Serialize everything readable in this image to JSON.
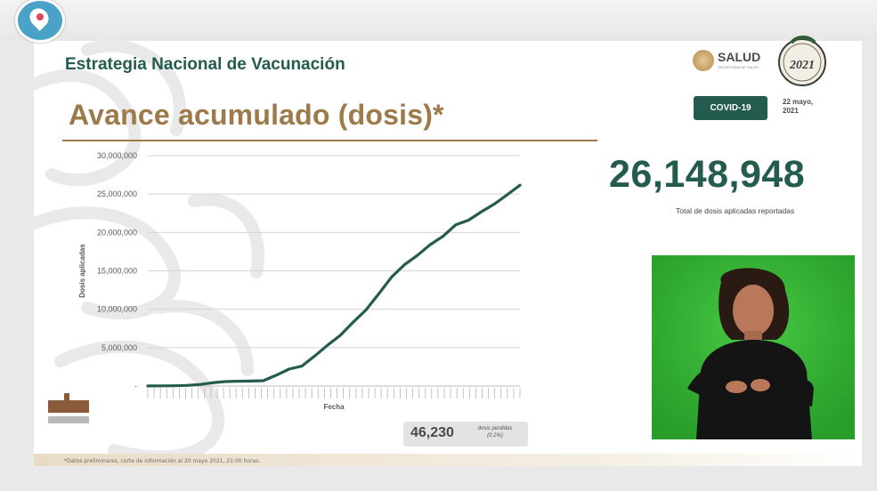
{
  "header": {
    "title": "Estrategia Nacional de Vacunación",
    "subtitle": "Avance acumulado (dosis)*"
  },
  "logos": {
    "salud": "SALUD",
    "salud_sub": "SECRETARÍA DE SALUD",
    "mexico_year": "2021"
  },
  "badge": {
    "label": "COVID-19"
  },
  "date": {
    "line1": "22 mayo,",
    "line2": "2021"
  },
  "kpi": {
    "value": "26,148,948",
    "caption": "Total de dosis aplicadas reportadas"
  },
  "lost": {
    "value": "46,230",
    "label_line1": "dosis perdidas",
    "label_line2": "(0.2%)"
  },
  "footnote": "*Datos preliminares, corte de información al 20 mayo 2021, 21:00 horas.",
  "colors": {
    "green": "#235b4e",
    "gold": "#9c7a4a",
    "line": "#235b4e",
    "interpreter_bg": "#34b233"
  },
  "icons": {
    "periscope": "periscope-icon"
  },
  "chart_data": {
    "type": "line",
    "title": "",
    "xlabel": "Fecha",
    "ylabel": "Dosis aplicadas",
    "ylim": [
      0,
      30000000
    ],
    "yticks": [
      "30,000,000",
      "25,000,000",
      "20,000,000",
      "15,000,000",
      "10,000,000",
      "5,000,000",
      "-"
    ],
    "ytick_values": [
      30000000,
      25000000,
      20000000,
      15000000,
      10000000,
      5000000,
      0
    ],
    "grid": true,
    "x": [
      1,
      6,
      11,
      16,
      21,
      26,
      31,
      36,
      41,
      46,
      51,
      56,
      61,
      66,
      71,
      76,
      81,
      86,
      91,
      96,
      101,
      106,
      111,
      116,
      121,
      126,
      131,
      136,
      141,
      146
    ],
    "series": [
      {
        "values": [
          10000,
          20000,
          40000,
          80000,
          200000,
          420000,
          580000,
          620000,
          650000,
          700000,
          1400000,
          2200000,
          2600000,
          3900000,
          5300000,
          6600000,
          8300000,
          9900000,
          12000000,
          14200000,
          15800000,
          17000000,
          18400000,
          19500000,
          21000000,
          21600000,
          22700000,
          23700000,
          24900000,
          26148948
        ]
      }
    ]
  }
}
